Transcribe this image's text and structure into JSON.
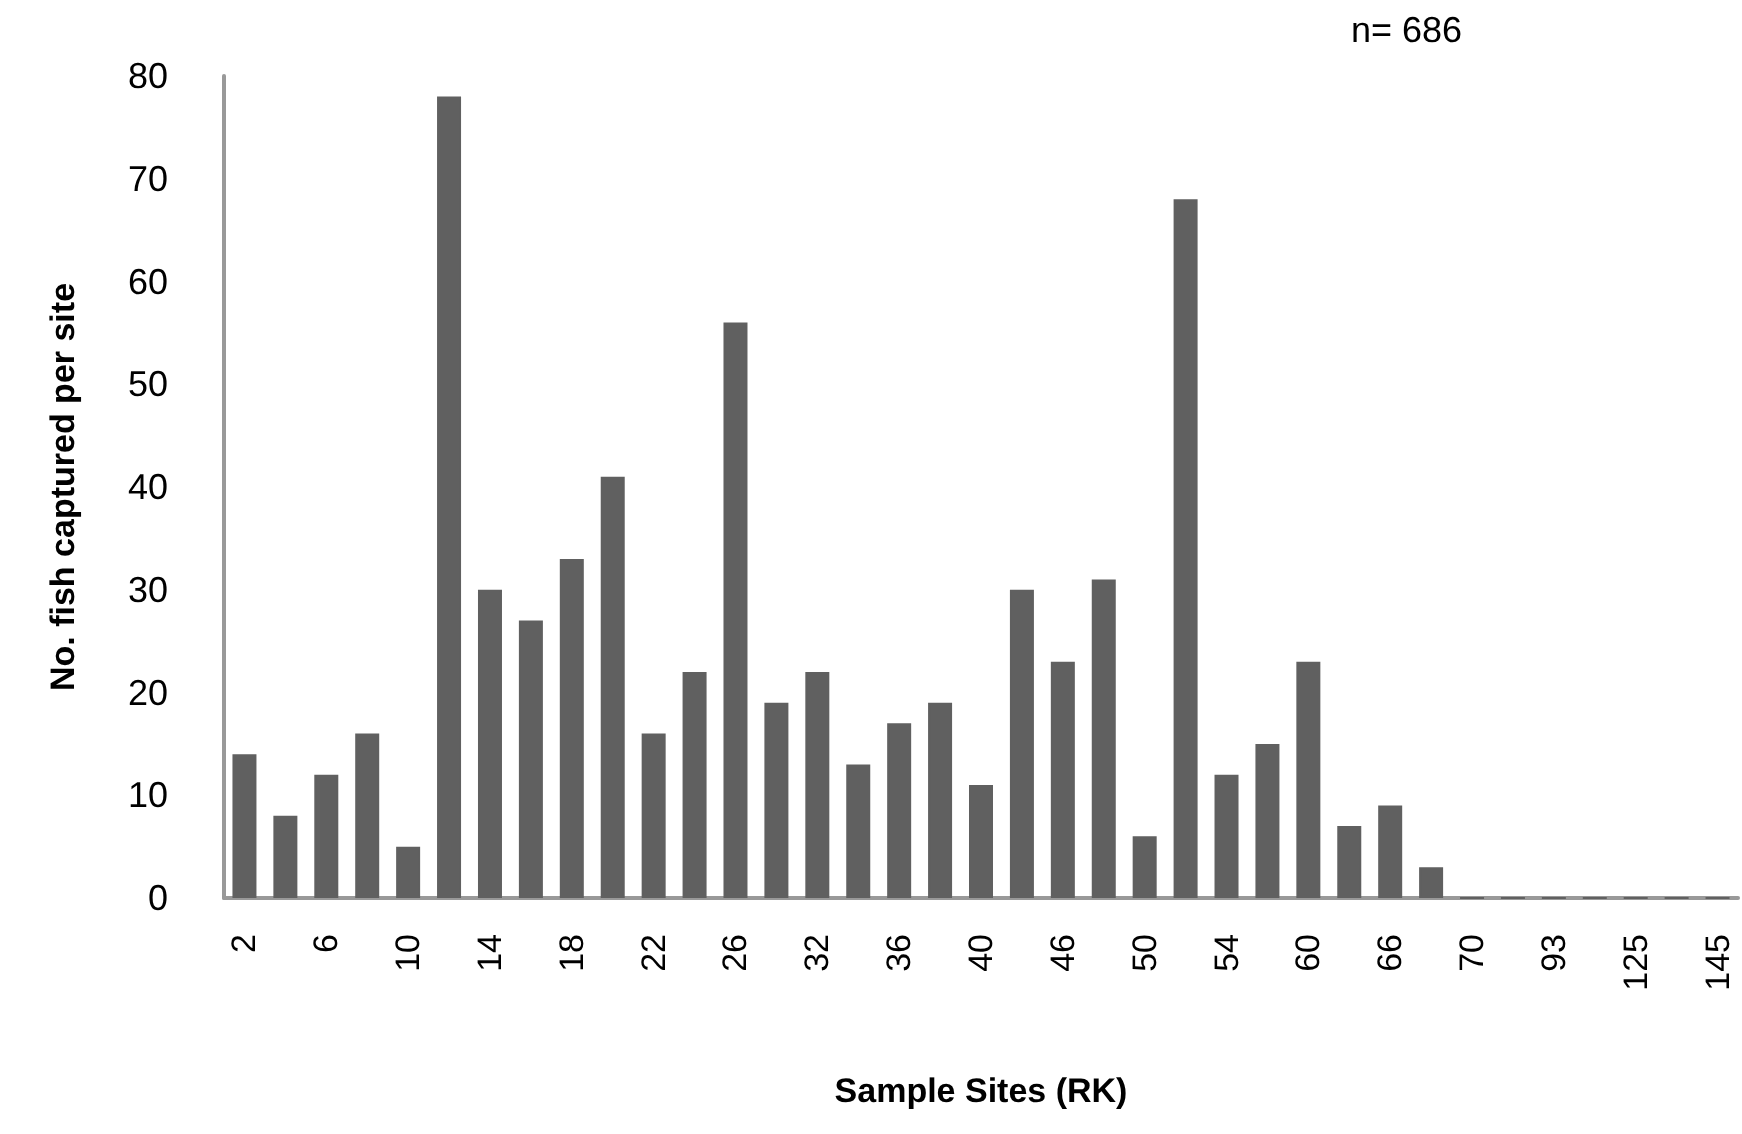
{
  "chart_data": {
    "type": "bar",
    "xlabel": "Sample Sites (RK)",
    "ylabel": "No. fish captured per site",
    "annotations": [
      "n= 686"
    ],
    "categories": [
      "2",
      null,
      "6",
      null,
      "10",
      null,
      "14",
      null,
      "18",
      null,
      "22",
      null,
      "26",
      null,
      "32",
      null,
      "36",
      null,
      "40",
      null,
      "46",
      null,
      "50",
      null,
      "54",
      null,
      "60",
      null,
      "66",
      null,
      "70",
      null,
      "93",
      null,
      "125",
      null,
      "145"
    ],
    "values": [
      14,
      8,
      12,
      16,
      5,
      78,
      30,
      27,
      33,
      41,
      16,
      22,
      56,
      19,
      22,
      13,
      17,
      19,
      11,
      30,
      23,
      31,
      6,
      68,
      12,
      15,
      23,
      7,
      9,
      3,
      0,
      0,
      0,
      0,
      0,
      0,
      0
    ],
    "color": "#606060",
    "ylim": [
      0,
      80
    ],
    "yticks": [
      0,
      10,
      20,
      30,
      40,
      50,
      60,
      70,
      80
    ],
    "grid": false
  }
}
